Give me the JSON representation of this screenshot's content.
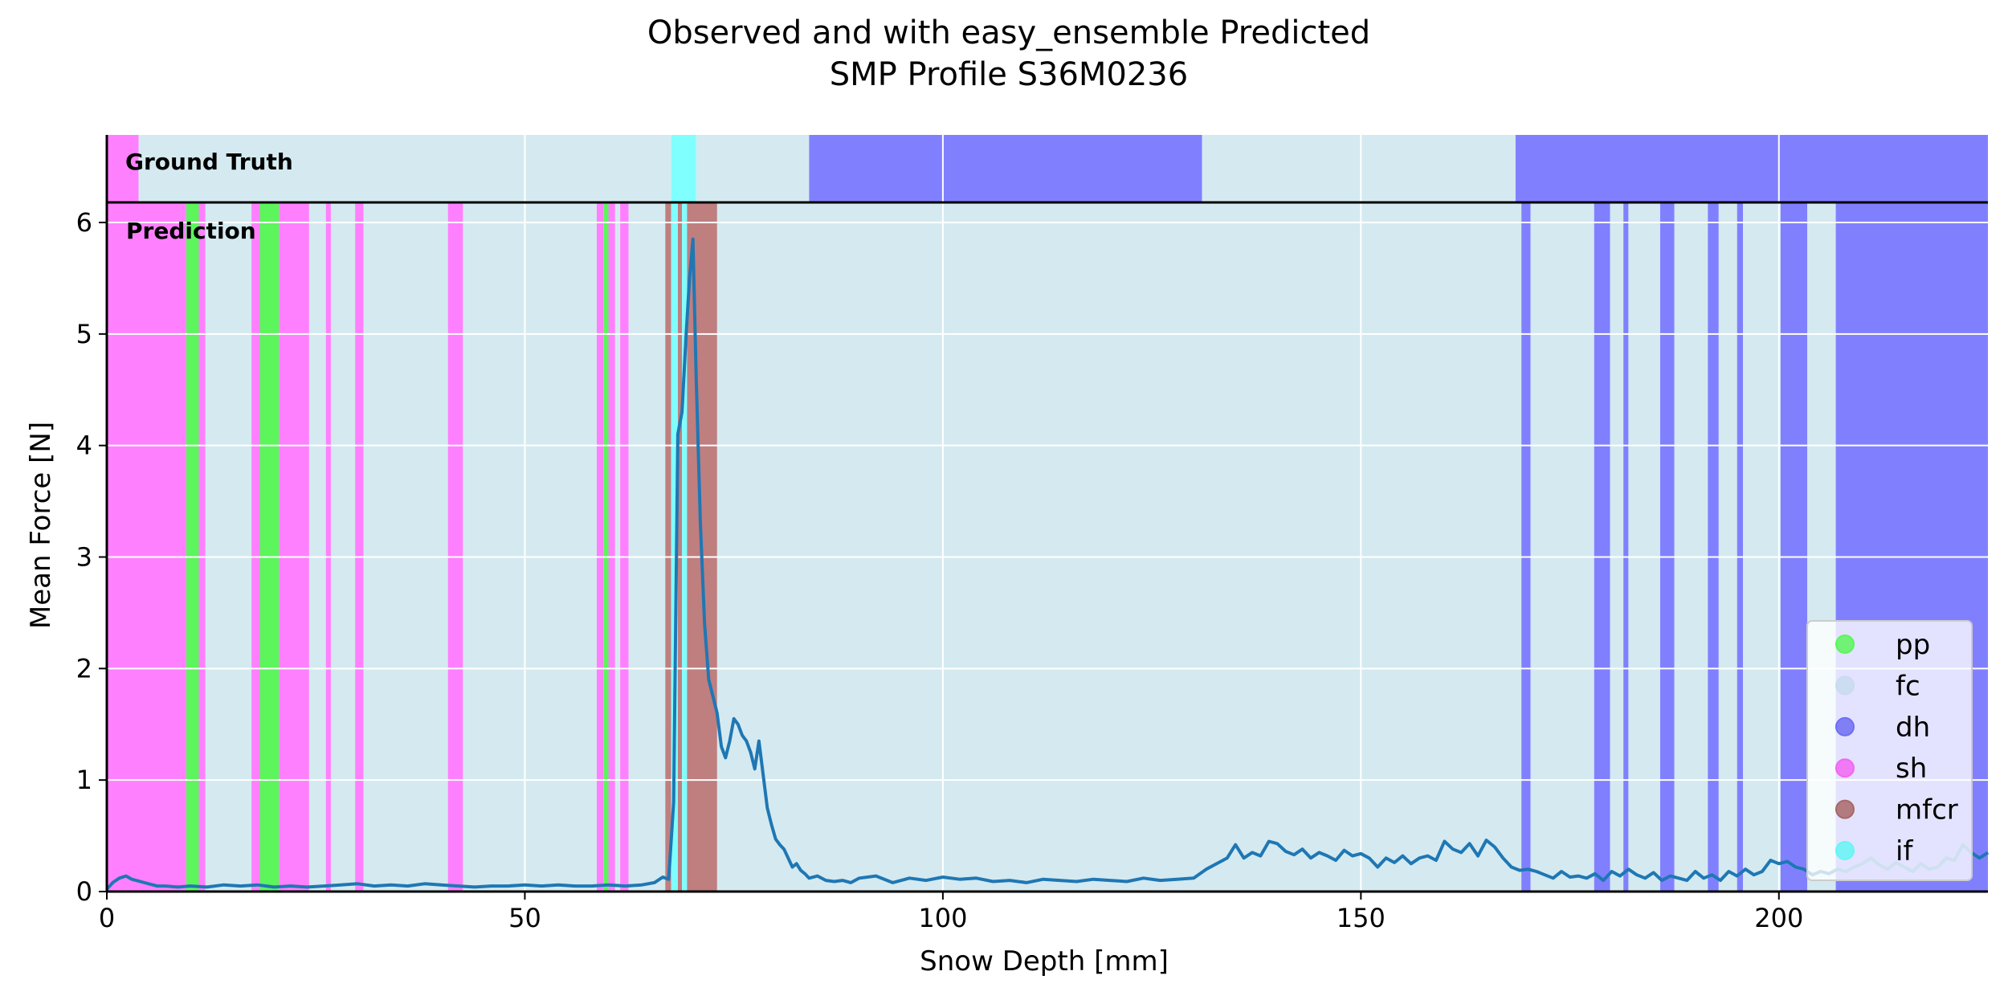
{
  "chart_data": {
    "type": "line",
    "title": "Observed and with easy_ensemble Predicted",
    "subtitle": "SMP Profile S36M0236",
    "xlabel": "Snow Depth [mm]",
    "ylabel": "Mean Force [N]",
    "xlim": [
      0,
      225
    ],
    "ylim": [
      0,
      6.2
    ],
    "xticks": [
      "0",
      "50",
      "100",
      "150",
      "200"
    ],
    "xtick_values": [
      0,
      50,
      100,
      150,
      200
    ],
    "yticks": [
      "0",
      "1",
      "2",
      "3",
      "4",
      "5",
      "6"
    ],
    "ytick_values": [
      0,
      1,
      2,
      3,
      4,
      5,
      6
    ],
    "grid": true,
    "legend_position": "lower-right",
    "panel_labels": {
      "ground_truth": "Ground Truth",
      "prediction": "Prediction"
    },
    "class_colors": {
      "pp": "#5cf55c",
      "fc": "#d4eaf0",
      "dh": "#8080ff",
      "sh": "#ff80ff",
      "mfcr": "#bf7f7f",
      "if": "#80ffff"
    },
    "legend": [
      "pp",
      "fc",
      "dh",
      "sh",
      "mfcr",
      "if"
    ],
    "legend_colors": {
      "pp": "#5cf55c",
      "fc": "#c8dcf0",
      "dh": "#6f6ff2",
      "sh": "#f266f2",
      "mfcr": "#a86868",
      "if": "#66f5f5"
    },
    "line_color": "#1f77b4",
    "ground_truth_segments": [
      {
        "start": 0,
        "end": 3.8,
        "label": "sh"
      },
      {
        "start": 3.8,
        "end": 67.5,
        "label": "fc"
      },
      {
        "start": 67.5,
        "end": 70.5,
        "label": "if"
      },
      {
        "start": 70.5,
        "end": 84.0,
        "label": "fc"
      },
      {
        "start": 84.0,
        "end": 131.0,
        "label": "dh"
      },
      {
        "start": 131.0,
        "end": 168.5,
        "label": "fc"
      },
      {
        "start": 168.5,
        "end": 225,
        "label": "dh"
      }
    ],
    "prediction_segments": [
      {
        "start": 0,
        "end": 9.5,
        "label": "sh"
      },
      {
        "start": 9.5,
        "end": 11.0,
        "label": "pp"
      },
      {
        "start": 11.0,
        "end": 11.8,
        "label": "sh"
      },
      {
        "start": 11.8,
        "end": 17.3,
        "label": "fc"
      },
      {
        "start": 17.3,
        "end": 18.3,
        "label": "sh"
      },
      {
        "start": 18.3,
        "end": 20.6,
        "label": "pp"
      },
      {
        "start": 20.6,
        "end": 24.2,
        "label": "sh"
      },
      {
        "start": 24.2,
        "end": 26.2,
        "label": "fc"
      },
      {
        "start": 26.2,
        "end": 26.8,
        "label": "sh"
      },
      {
        "start": 26.8,
        "end": 29.7,
        "label": "fc"
      },
      {
        "start": 29.7,
        "end": 30.7,
        "label": "sh"
      },
      {
        "start": 30.7,
        "end": 40.8,
        "label": "fc"
      },
      {
        "start": 40.8,
        "end": 42.6,
        "label": "sh"
      },
      {
        "start": 42.6,
        "end": 58.6,
        "label": "fc"
      },
      {
        "start": 58.6,
        "end": 59.4,
        "label": "sh"
      },
      {
        "start": 59.4,
        "end": 60.0,
        "label": "pp"
      },
      {
        "start": 60.0,
        "end": 60.8,
        "label": "sh"
      },
      {
        "start": 60.8,
        "end": 61.4,
        "label": "fc"
      },
      {
        "start": 61.4,
        "end": 62.4,
        "label": "sh"
      },
      {
        "start": 62.4,
        "end": 66.8,
        "label": "fc"
      },
      {
        "start": 66.8,
        "end": 67.5,
        "label": "mfcr"
      },
      {
        "start": 67.5,
        "end": 68.3,
        "label": "if"
      },
      {
        "start": 68.3,
        "end": 68.8,
        "label": "mfcr"
      },
      {
        "start": 68.8,
        "end": 69.4,
        "label": "if"
      },
      {
        "start": 69.4,
        "end": 73.0,
        "label": "mfcr"
      },
      {
        "start": 73.0,
        "end": 169.2,
        "label": "fc"
      },
      {
        "start": 169.2,
        "end": 170.3,
        "label": "dh"
      },
      {
        "start": 170.3,
        "end": 177.9,
        "label": "fc"
      },
      {
        "start": 177.9,
        "end": 179.8,
        "label": "dh"
      },
      {
        "start": 179.8,
        "end": 181.4,
        "label": "fc"
      },
      {
        "start": 181.4,
        "end": 182.0,
        "label": "dh"
      },
      {
        "start": 182.0,
        "end": 185.8,
        "label": "fc"
      },
      {
        "start": 185.8,
        "end": 187.5,
        "label": "dh"
      },
      {
        "start": 187.5,
        "end": 191.5,
        "label": "fc"
      },
      {
        "start": 191.5,
        "end": 192.8,
        "label": "dh"
      },
      {
        "start": 192.8,
        "end": 195.0,
        "label": "fc"
      },
      {
        "start": 195.0,
        "end": 195.7,
        "label": "dh"
      },
      {
        "start": 195.7,
        "end": 200.2,
        "label": "fc"
      },
      {
        "start": 200.2,
        "end": 203.4,
        "label": "dh"
      },
      {
        "start": 203.4,
        "end": 206.8,
        "label": "fc"
      },
      {
        "start": 206.8,
        "end": 225,
        "label": "dh"
      }
    ],
    "series": [
      {
        "x": [
          0,
          0.7,
          1.5,
          2.3,
          3.0,
          4.0,
          5.0,
          6.0,
          7.0,
          8.5,
          10.0,
          12.0,
          14.0,
          16.0,
          18.0,
          20.0,
          22.0,
          24.0,
          26.0,
          28.0,
          30.0,
          32.0,
          34.0,
          36.0,
          38.0,
          40.0,
          42.0,
          44.0,
          46.0,
          48.0,
          50.0,
          52.0,
          54.0,
          56.0,
          58.0,
          60.0,
          62.0,
          64.0,
          65.5,
          66.5,
          67.2,
          67.8,
          68.3,
          68.8,
          69.3,
          69.7,
          70.1,
          70.5,
          71.0,
          71.5,
          72.0,
          72.5,
          73.0,
          73.5,
          74.0,
          74.5,
          75.0,
          75.5,
          76.0,
          76.5,
          77.0,
          77.5,
          78.0,
          78.5,
          79.0,
          79.5,
          80.0,
          80.5,
          81.0,
          81.5,
          82.0,
          82.5,
          83.0,
          83.5,
          84.0,
          85.0,
          86.0,
          87.0,
          88.0,
          89.0,
          90.0,
          92.0,
          94.0,
          96.0,
          98.0,
          100.0,
          102.0,
          104.0,
          106.0,
          108.0,
          110.0,
          112.0,
          114.0,
          116.0,
          118.0,
          120.0,
          122.0,
          124.0,
          126.0,
          128.0,
          130.0,
          131.5,
          133.0,
          134.0,
          135.0,
          136.0,
          137.0,
          138.0,
          139.0,
          140.0,
          141.0,
          142.0,
          143.0,
          144.0,
          145.0,
          146.0,
          147.0,
          148.0,
          149.0,
          150.0,
          151.0,
          152.0,
          153.0,
          154.0,
          155.0,
          156.0,
          157.0,
          158.0,
          159.0,
          160.0,
          161.0,
          162.0,
          163.0,
          164.0,
          165.0,
          166.0,
          167.0,
          168.0,
          169.0,
          170.0,
          171.0,
          172.0,
          173.0,
          174.0,
          175.0,
          176.0,
          177.0,
          178.0,
          179.0,
          180.0,
          181.0,
          182.0,
          183.0,
          184.0,
          185.0,
          186.0,
          187.0,
          188.0,
          189.0,
          190.0,
          191.0,
          192.0,
          193.0,
          194.0,
          195.0,
          196.0,
          197.0,
          198.0,
          199.0,
          200.0,
          201.0,
          202.0,
          203.0,
          204.0,
          205.0,
          206.0,
          207.0,
          208.0,
          209.0,
          210.0,
          211.0,
          212.0,
          213.0,
          214.0,
          215.0,
          216.0,
          217.0,
          218.0,
          219.0,
          220.0,
          221.0,
          222.0,
          223.0,
          224.0,
          225.0
        ],
        "y": [
          0.02,
          0.08,
          0.12,
          0.14,
          0.11,
          0.09,
          0.07,
          0.05,
          0.05,
          0.04,
          0.05,
          0.04,
          0.06,
          0.05,
          0.06,
          0.04,
          0.05,
          0.04,
          0.05,
          0.06,
          0.07,
          0.05,
          0.06,
          0.05,
          0.07,
          0.06,
          0.05,
          0.04,
          0.05,
          0.05,
          0.06,
          0.05,
          0.06,
          0.05,
          0.05,
          0.06,
          0.05,
          0.06,
          0.08,
          0.13,
          0.11,
          0.8,
          4.1,
          4.3,
          5.0,
          5.5,
          5.85,
          4.6,
          3.3,
          2.4,
          1.9,
          1.75,
          1.6,
          1.3,
          1.2,
          1.35,
          1.55,
          1.5,
          1.4,
          1.35,
          1.25,
          1.1,
          1.35,
          1.05,
          0.75,
          0.6,
          0.47,
          0.42,
          0.38,
          0.3,
          0.22,
          0.25,
          0.19,
          0.16,
          0.12,
          0.14,
          0.1,
          0.09,
          0.1,
          0.08,
          0.12,
          0.14,
          0.08,
          0.12,
          0.1,
          0.13,
          0.11,
          0.12,
          0.09,
          0.1,
          0.08,
          0.11,
          0.1,
          0.09,
          0.11,
          0.1,
          0.09,
          0.12,
          0.1,
          0.11,
          0.12,
          0.2,
          0.26,
          0.3,
          0.42,
          0.3,
          0.35,
          0.32,
          0.45,
          0.43,
          0.36,
          0.33,
          0.38,
          0.3,
          0.35,
          0.32,
          0.28,
          0.37,
          0.32,
          0.34,
          0.3,
          0.22,
          0.3,
          0.26,
          0.32,
          0.25,
          0.3,
          0.32,
          0.28,
          0.45,
          0.38,
          0.35,
          0.43,
          0.32,
          0.46,
          0.4,
          0.3,
          0.22,
          0.19,
          0.2,
          0.18,
          0.15,
          0.12,
          0.18,
          0.13,
          0.14,
          0.12,
          0.16,
          0.1,
          0.18,
          0.14,
          0.2,
          0.15,
          0.12,
          0.17,
          0.1,
          0.14,
          0.12,
          0.1,
          0.18,
          0.12,
          0.15,
          0.1,
          0.18,
          0.14,
          0.2,
          0.15,
          0.18,
          0.28,
          0.25,
          0.27,
          0.22,
          0.2,
          0.15,
          0.18,
          0.16,
          0.2,
          0.18,
          0.22,
          0.25,
          0.3,
          0.24,
          0.2,
          0.26,
          0.22,
          0.18,
          0.25,
          0.2,
          0.22,
          0.3,
          0.28,
          0.42,
          0.35,
          0.3,
          0.35
        ]
      }
    ]
  }
}
